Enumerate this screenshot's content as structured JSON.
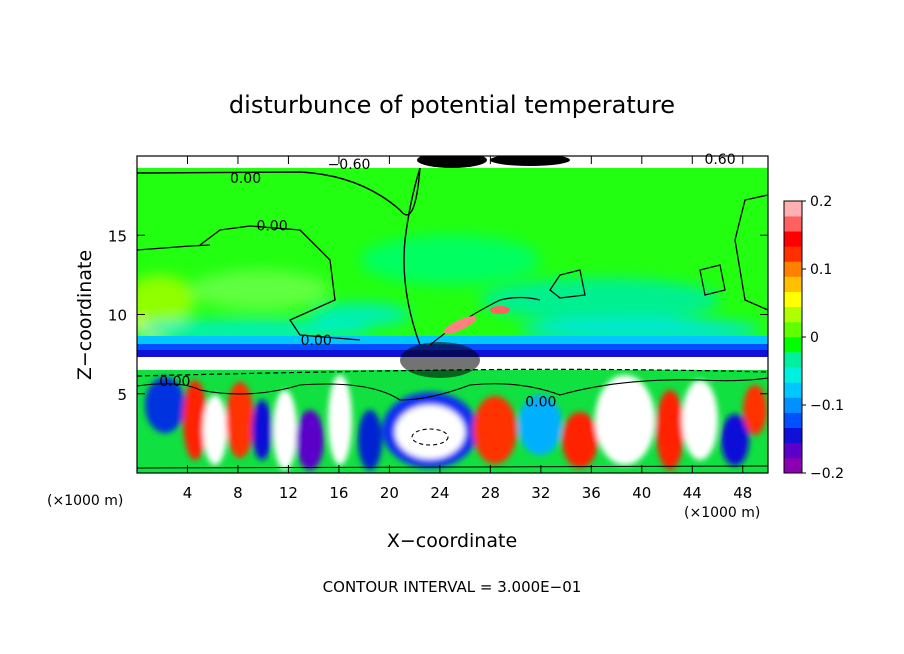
{
  "chart_data": {
    "type": "heatmap",
    "title": "disturbunce of potential temperature",
    "xlabel": "X−coordinate",
    "ylabel": "Z−coordinate",
    "x_unit_left": "(×1000 m)",
    "x_unit_right": "(×1000 m)",
    "xlim": [
      0,
      50
    ],
    "ylim": [
      0,
      20
    ],
    "x_ticks": [
      4,
      8,
      12,
      16,
      20,
      24,
      28,
      32,
      36,
      40,
      44,
      48
    ],
    "x_tick_labels": [
      "4",
      "8",
      "12",
      "16",
      "20",
      "24",
      "28",
      "32",
      "36",
      "40",
      "44",
      "48"
    ],
    "y_ticks": [
      5,
      10,
      15
    ],
    "y_tick_labels": [
      "5",
      "10",
      "15"
    ],
    "footer": "CONTOUR INTERVAL = 3.000E−01",
    "colorbar": {
      "min": -0.2,
      "max": 0.2,
      "ticks": [
        0.2,
        0.1,
        0,
        -0.1,
        -0.2
      ],
      "tick_labels": [
        "0.2",
        "0.1",
        "0",
        "−0.1",
        "−0.2"
      ],
      "colors": [
        "#8b00b0",
        "#5a00c8",
        "#1010d8",
        "#0050ff",
        "#0090ff",
        "#00c8ff",
        "#00f0e0",
        "#00f0a0",
        "#00ff00",
        "#60ff00",
        "#b0ff00",
        "#ffff00",
        "#ffc000",
        "#ff8000",
        "#ff3000",
        "#ff0000",
        "#ff6060",
        "#ffb0b0"
      ]
    },
    "contour_labels": [
      {
        "text": "0.00",
        "x": 8.6,
        "y": 18.6
      },
      {
        "text": "0.00",
        "x": 10.7,
        "y": 15.6
      },
      {
        "text": "0.00",
        "x": 14.2,
        "y": 8.4
      },
      {
        "text": "0.00",
        "x": 3.0,
        "y": 5.8
      },
      {
        "text": "0.00",
        "x": 32.0,
        "y": 4.5
      },
      {
        "text": "−0.60",
        "x": 16.8,
        "y": 19.5
      },
      {
        "text": "0.60",
        "x": 46.2,
        "y": 19.8
      }
    ]
  }
}
